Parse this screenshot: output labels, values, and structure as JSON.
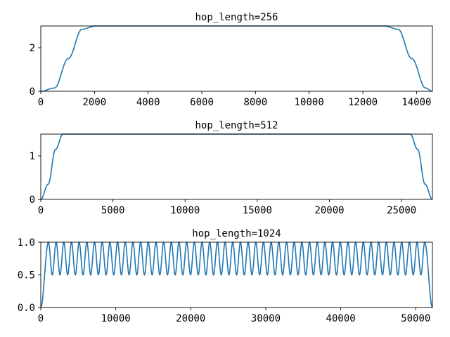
{
  "chart_data": [
    {
      "type": "line",
      "title": "hop_length=256",
      "xlim": [
        0,
        14592
      ],
      "ylim": [
        0,
        3
      ],
      "xticks": [
        0,
        2000,
        4000,
        6000,
        8000,
        10000,
        12000,
        14000
      ],
      "yticks": [
        0,
        2
      ],
      "series": [
        {
          "color": "#1f77b4",
          "x": [
            0,
            512,
            1024,
            1536,
            2048,
            12288,
            12800,
            13312,
            13824,
            14336,
            14592
          ],
          "y": [
            0,
            0.15,
            1.5,
            2.85,
            3.0,
            3.0,
            3.0,
            2.85,
            1.5,
            0.15,
            0
          ]
        }
      ]
    },
    {
      "type": "line",
      "title": "hop_length=512",
      "xlim": [
        0,
        27136
      ],
      "ylim": [
        0,
        1.5
      ],
      "xticks": [
        0,
        5000,
        10000,
        15000,
        20000,
        25000
      ],
      "yticks": [
        0,
        1
      ],
      "series": [
        {
          "color": "#1f77b4",
          "x": [
            0,
            512,
            1024,
            1536,
            25600,
            26112,
            26624,
            27136
          ],
          "y": [
            0,
            0.35,
            1.15,
            1.5,
            1.5,
            1.15,
            0.35,
            0
          ]
        }
      ]
    },
    {
      "type": "line",
      "title": "hop_length=1024",
      "xlim": [
        0,
        52224
      ],
      "ylim": [
        0,
        1.0
      ],
      "xticks": [
        0,
        10000,
        20000,
        30000,
        40000,
        50000
      ],
      "yticks": [
        0.0,
        0.5,
        1.0
      ],
      "ytick_labels": [
        "0.0",
        "0.5",
        "1.0"
      ],
      "series": [
        {
          "color": "#1f77b4",
          "description_period": 1024,
          "y_range": [
            0.5,
            1.0
          ],
          "edge_ramp": [
            0,
            1024
          ]
        }
      ]
    }
  ]
}
